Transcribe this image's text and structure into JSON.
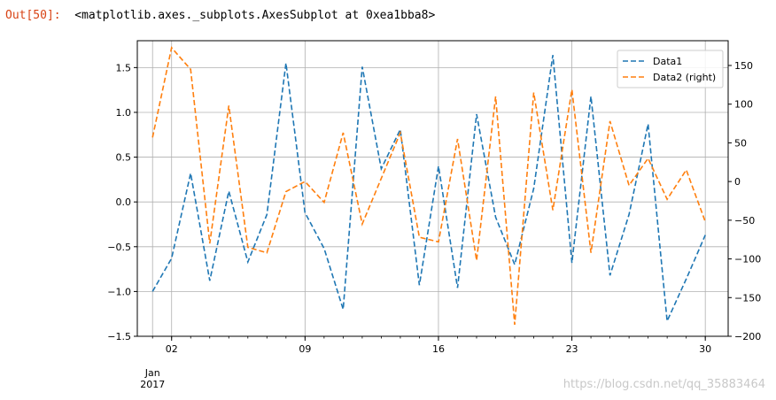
{
  "cell": {
    "prompt": "Out[50]:",
    "repr": "<matplotlib.axes._subplots.AxesSubplot at 0xea1bba8>"
  },
  "watermark": "https://blog.csdn.net/qq_35883464",
  "colors": {
    "data1": "#1f77b4",
    "data2": "#ff7f0e",
    "grid": "#b0b0b0"
  },
  "chart_data": {
    "type": "line",
    "grid": true,
    "legend_position": "top-right",
    "x": [
      1,
      2,
      3,
      4,
      5,
      6,
      7,
      8,
      9,
      10,
      11,
      12,
      13,
      14,
      15,
      16,
      17,
      18,
      19,
      20,
      21,
      22,
      23,
      24,
      25,
      26,
      27,
      28,
      29,
      30
    ],
    "x_unit": "day of Jan 2017",
    "xlim": [
      0.2,
      31.2
    ],
    "xticks": [
      {
        "value": 2,
        "label": "02"
      },
      {
        "value": 9,
        "label": "09"
      },
      {
        "value": 16,
        "label": "16"
      },
      {
        "value": 23,
        "label": "23"
      },
      {
        "value": 30,
        "label": "30"
      }
    ],
    "x_minor_ticks": [
      1,
      2,
      3,
      4,
      5,
      6,
      7,
      8,
      9,
      10,
      11,
      12,
      13,
      14,
      15,
      16,
      17,
      18,
      19,
      20,
      21,
      22,
      23,
      24,
      25,
      26,
      27,
      28,
      29,
      30
    ],
    "x_sublabel": [
      "Jan",
      "2017"
    ],
    "left_axis": {
      "ylim": [
        -1.5,
        1.8
      ],
      "ticks": [
        -1.5,
        -1.0,
        -0.5,
        0.0,
        0.5,
        1.0,
        1.5
      ],
      "tick_labels": [
        "−1.5",
        "−1.0",
        "−0.5",
        "0.0",
        "0.5",
        "1.0",
        "1.5"
      ]
    },
    "right_axis": {
      "ylim": [
        -200,
        182
      ],
      "ticks": [
        -200,
        -150,
        -100,
        -50,
        0,
        50,
        100,
        150
      ],
      "tick_labels": [
        "−200",
        "−150",
        "−100",
        "−50",
        "0",
        "50",
        "100",
        "150"
      ]
    },
    "series": [
      {
        "name": "Data1",
        "axis": "left",
        "style": "dashed",
        "values": [
          -1.0,
          -0.63,
          0.32,
          -0.88,
          0.12,
          -0.67,
          -0.14,
          1.55,
          -0.12,
          -0.52,
          -1.2,
          1.51,
          0.37,
          0.81,
          -0.93,
          0.4,
          -0.96,
          0.98,
          -0.17,
          -0.7,
          0.15,
          1.64,
          -0.68,
          1.18,
          -0.82,
          -0.14,
          0.87,
          -1.33,
          -0.86,
          -0.37
        ]
      },
      {
        "name": "Data2 (right)",
        "axis": "right",
        "style": "dashed",
        "values": [
          57,
          173,
          145,
          -80,
          98,
          -85,
          -92,
          -13,
          0,
          -27,
          63,
          -55,
          4,
          63,
          -72,
          -78,
          55,
          -102,
          110,
          -185,
          115,
          -37,
          119,
          -92,
          78,
          -5,
          30,
          -23,
          15,
          -52
        ]
      }
    ]
  }
}
